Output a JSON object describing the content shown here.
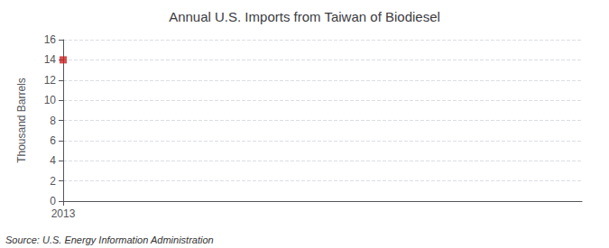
{
  "chart_data": {
    "type": "scatter",
    "title": "Annual U.S. Imports from Taiwan of Biodiesel",
    "ylabel": "Thousand Barrels",
    "annotation": "Source: U.S. Energy Information Administration",
    "x": [
      2013
    ],
    "values": [
      14
    ],
    "color": "#cc2222",
    "marker": "square",
    "xlim": [
      2013,
      2014.5
    ],
    "xticks": [
      2013
    ],
    "ylim": [
      0,
      16
    ],
    "yticks": [
      0,
      2,
      4,
      6,
      8,
      10,
      12,
      14,
      16
    ],
    "grid": true
  }
}
